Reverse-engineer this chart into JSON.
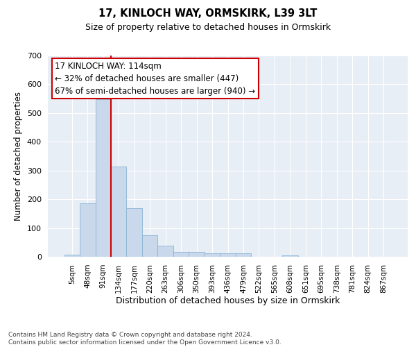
{
  "title": "17, KINLOCH WAY, ORMSKIRK, L39 3LT",
  "subtitle": "Size of property relative to detached houses in Ormskirk",
  "xlabel": "Distribution of detached houses by size in Ormskirk",
  "ylabel": "Number of detached properties",
  "categories": [
    "5sqm",
    "48sqm",
    "91sqm",
    "134sqm",
    "177sqm",
    "220sqm",
    "263sqm",
    "306sqm",
    "350sqm",
    "393sqm",
    "436sqm",
    "479sqm",
    "522sqm",
    "565sqm",
    "608sqm",
    "651sqm",
    "695sqm",
    "738sqm",
    "781sqm",
    "824sqm",
    "867sqm"
  ],
  "values": [
    8,
    186,
    547,
    314,
    168,
    76,
    38,
    17,
    17,
    11,
    11,
    11,
    0,
    0,
    6,
    0,
    0,
    0,
    0,
    0,
    0
  ],
  "bar_color": "#c9d9eb",
  "bar_edge_color": "#8ab4d4",
  "vline_x": 2.5,
  "vline_color": "#cc0000",
  "annotation_line1": "17 KINLOCH WAY: 114sqm",
  "annotation_line2": "← 32% of detached houses are smaller (447)",
  "annotation_line3": "67% of semi-detached houses are larger (940) →",
  "annotation_box_facecolor": "#ffffff",
  "annotation_box_edgecolor": "#cc0000",
  "footnote": "Contains HM Land Registry data © Crown copyright and database right 2024.\nContains public sector information licensed under the Open Government Licence v3.0.",
  "ylim": [
    0,
    700
  ],
  "yticks": [
    0,
    100,
    200,
    300,
    400,
    500,
    600,
    700
  ],
  "plot_bg": "#e8eef5",
  "fig_bg": "#ffffff",
  "grid_color": "#ffffff"
}
